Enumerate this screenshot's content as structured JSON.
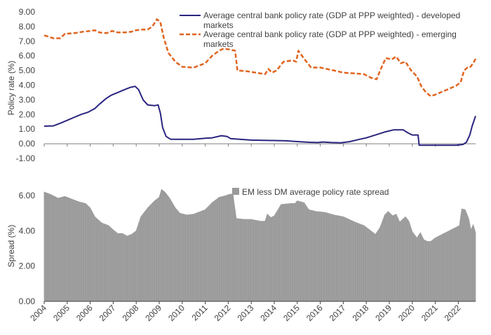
{
  "colors": {
    "developed": "#2a2580",
    "emerging": "#e0641e",
    "spread": "#9a9a9a",
    "axis": "#404040",
    "zero": "#7f7f7f"
  },
  "chart_data": [
    {
      "type": "line",
      "ylabel": "Policy rate (%)",
      "ylim": [
        -1.0,
        9.0
      ],
      "y_ticks": [
        "9.00",
        "8.00",
        "7.00",
        "6.00",
        "5.00",
        "4.00",
        "3.00",
        "2.00",
        "1.00",
        "0.00",
        "-1.00"
      ],
      "x_range": [
        2004.0,
        2022.75
      ],
      "grid": false,
      "legend_position": "top-right",
      "series": [
        {
          "name": "Average central bank policy rate (GDP at PPP weighted) - developed markets",
          "style": "solid",
          "points": [
            [
              2004.0,
              1.2
            ],
            [
              2004.4,
              1.22
            ],
            [
              2004.7,
              1.4
            ],
            [
              2005.0,
              1.6
            ],
            [
              2005.3,
              1.8
            ],
            [
              2005.6,
              2.0
            ],
            [
              2005.9,
              2.15
            ],
            [
              2006.2,
              2.4
            ],
            [
              2006.4,
              2.7
            ],
            [
              2006.7,
              3.1
            ],
            [
              2006.9,
              3.3
            ],
            [
              2007.2,
              3.5
            ],
            [
              2007.5,
              3.7
            ],
            [
              2007.75,
              3.85
            ],
            [
              2007.95,
              3.92
            ],
            [
              2008.1,
              3.7
            ],
            [
              2008.3,
              3.0
            ],
            [
              2008.5,
              2.65
            ],
            [
              2008.8,
              2.6
            ],
            [
              2008.95,
              2.65
            ],
            [
              2009.05,
              2.1
            ],
            [
              2009.15,
              1.1
            ],
            [
              2009.3,
              0.5
            ],
            [
              2009.5,
              0.3
            ],
            [
              2010.0,
              0.3
            ],
            [
              2010.5,
              0.3
            ],
            [
              2011.0,
              0.38
            ],
            [
              2011.3,
              0.4
            ],
            [
              2011.7,
              0.55
            ],
            [
              2011.95,
              0.5
            ],
            [
              2012.1,
              0.35
            ],
            [
              2012.5,
              0.3
            ],
            [
              2013.0,
              0.25
            ],
            [
              2014.0,
              0.22
            ],
            [
              2014.5,
              0.2
            ],
            [
              2015.0,
              0.15
            ],
            [
              2015.5,
              0.1
            ],
            [
              2015.9,
              0.08
            ],
            [
              2016.1,
              0.12
            ],
            [
              2016.5,
              0.08
            ],
            [
              2016.9,
              0.06
            ],
            [
              2017.3,
              0.15
            ],
            [
              2017.7,
              0.3
            ],
            [
              2018.0,
              0.4
            ],
            [
              2018.4,
              0.6
            ],
            [
              2018.8,
              0.8
            ],
            [
              2019.2,
              0.95
            ],
            [
              2019.6,
              0.95
            ],
            [
              2019.8,
              0.75
            ],
            [
              2020.0,
              0.6
            ],
            [
              2020.25,
              0.6
            ],
            [
              2020.3,
              -0.1
            ],
            [
              2020.5,
              -0.1
            ],
            [
              2021.0,
              -0.1
            ],
            [
              2021.5,
              -0.1
            ],
            [
              2021.9,
              -0.1
            ],
            [
              2022.2,
              -0.05
            ],
            [
              2022.35,
              0.1
            ],
            [
              2022.5,
              0.6
            ],
            [
              2022.6,
              1.2
            ],
            [
              2022.75,
              1.9
            ]
          ]
        },
        {
          "name": "Average central bank policy rate (GDP at PPP weighted) - emerging markets",
          "style": "dashed",
          "points": [
            [
              2004.0,
              7.4
            ],
            [
              2004.2,
              7.3
            ],
            [
              2004.4,
              7.2
            ],
            [
              2004.7,
              7.2
            ],
            [
              2004.9,
              7.5
            ],
            [
              2005.3,
              7.55
            ],
            [
              2005.7,
              7.65
            ],
            [
              2006.0,
              7.7
            ],
            [
              2006.2,
              7.75
            ],
            [
              2006.4,
              7.6
            ],
            [
              2006.7,
              7.55
            ],
            [
              2006.95,
              7.7
            ],
            [
              2007.2,
              7.6
            ],
            [
              2007.5,
              7.6
            ],
            [
              2007.8,
              7.65
            ],
            [
              2008.0,
              7.75
            ],
            [
              2008.3,
              7.8
            ],
            [
              2008.5,
              7.8
            ],
            [
              2008.7,
              8.0
            ],
            [
              2008.9,
              8.5
            ],
            [
              2009.05,
              8.3
            ],
            [
              2009.2,
              7.2
            ],
            [
              2009.4,
              6.2
            ],
            [
              2009.7,
              5.6
            ],
            [
              2010.0,
              5.25
            ],
            [
              2010.5,
              5.2
            ],
            [
              2011.0,
              5.5
            ],
            [
              2011.3,
              6.0
            ],
            [
              2011.6,
              6.35
            ],
            [
              2011.8,
              6.5
            ],
            [
              2012.0,
              6.45
            ],
            [
              2012.3,
              6.35
            ],
            [
              2012.4,
              5.0
            ],
            [
              2012.8,
              4.95
            ],
            [
              2013.2,
              4.85
            ],
            [
              2013.6,
              4.75
            ],
            [
              2013.75,
              5.1
            ],
            [
              2013.9,
              4.85
            ],
            [
              2014.1,
              5.0
            ],
            [
              2014.4,
              5.6
            ],
            [
              2014.8,
              5.7
            ],
            [
              2014.95,
              5.6
            ],
            [
              2015.05,
              6.35
            ],
            [
              2015.3,
              5.8
            ],
            [
              2015.6,
              5.2
            ],
            [
              2016.0,
              5.2
            ],
            [
              2016.3,
              5.1
            ],
            [
              2016.6,
              5.0
            ],
            [
              2017.0,
              4.85
            ],
            [
              2017.5,
              4.8
            ],
            [
              2017.9,
              4.75
            ],
            [
              2018.2,
              4.5
            ],
            [
              2018.45,
              4.4
            ],
            [
              2018.6,
              5.0
            ],
            [
              2018.85,
              5.85
            ],
            [
              2019.1,
              5.75
            ],
            [
              2019.3,
              5.95
            ],
            [
              2019.5,
              5.5
            ],
            [
              2019.7,
              5.6
            ],
            [
              2019.95,
              5.0
            ],
            [
              2020.2,
              4.6
            ],
            [
              2020.4,
              3.9
            ],
            [
              2020.6,
              3.5
            ],
            [
              2020.8,
              3.25
            ],
            [
              2021.0,
              3.35
            ],
            [
              2021.3,
              3.55
            ],
            [
              2021.6,
              3.75
            ],
            [
              2021.9,
              3.95
            ],
            [
              2022.1,
              4.2
            ],
            [
              2022.25,
              5.0
            ],
            [
              2022.4,
              5.2
            ],
            [
              2022.5,
              5.2
            ],
            [
              2022.65,
              5.5
            ],
            [
              2022.75,
              5.8
            ]
          ]
        }
      ]
    },
    {
      "type": "area",
      "ylabel": "Spread (%)",
      "ylim": [
        0.0,
        6.6
      ],
      "y_ticks": [
        "6.00",
        "4.00",
        "2.00",
        "0.00"
      ],
      "x_range": [
        2004.0,
        2022.75
      ],
      "x_ticks": [
        "2004",
        "2005",
        "2006",
        "2007",
        "2008",
        "2009",
        "2010",
        "2011",
        "2012",
        "2013",
        "2014",
        "2015",
        "2016",
        "2017",
        "2018",
        "2019",
        "2020",
        "2021",
        "2022"
      ],
      "grid": false,
      "legend_position": "top-right",
      "series": [
        {
          "name": "EM less DM average policy rate spread",
          "points": [
            [
              2004.0,
              6.2
            ],
            [
              2004.3,
              6.05
            ],
            [
              2004.6,
              5.85
            ],
            [
              2004.9,
              5.95
            ],
            [
              2005.2,
              5.8
            ],
            [
              2005.5,
              5.65
            ],
            [
              2005.8,
              5.55
            ],
            [
              2006.0,
              5.3
            ],
            [
              2006.2,
              4.8
            ],
            [
              2006.5,
              4.45
            ],
            [
              2006.8,
              4.3
            ],
            [
              2007.0,
              4.05
            ],
            [
              2007.2,
              3.85
            ],
            [
              2007.4,
              3.85
            ],
            [
              2007.6,
              3.7
            ],
            [
              2007.8,
              3.8
            ],
            [
              2008.0,
              4.0
            ],
            [
              2008.2,
              4.8
            ],
            [
              2008.5,
              5.3
            ],
            [
              2008.8,
              5.7
            ],
            [
              2009.0,
              5.9
            ],
            [
              2009.1,
              6.35
            ],
            [
              2009.25,
              6.2
            ],
            [
              2009.45,
              5.85
            ],
            [
              2009.7,
              5.3
            ],
            [
              2009.9,
              5.0
            ],
            [
              2010.2,
              4.9
            ],
            [
              2010.5,
              4.95
            ],
            [
              2010.8,
              5.1
            ],
            [
              2011.0,
              5.2
            ],
            [
              2011.3,
              5.6
            ],
            [
              2011.6,
              5.9
            ],
            [
              2011.9,
              6.0
            ],
            [
              2012.0,
              6.05
            ],
            [
              2012.2,
              6.1
            ],
            [
              2012.35,
              4.7
            ],
            [
              2012.7,
              4.65
            ],
            [
              2013.0,
              4.65
            ],
            [
              2013.4,
              4.55
            ],
            [
              2013.6,
              4.55
            ],
            [
              2013.7,
              4.95
            ],
            [
              2013.85,
              4.75
            ],
            [
              2014.0,
              4.85
            ],
            [
              2014.3,
              5.5
            ],
            [
              2014.7,
              5.55
            ],
            [
              2014.9,
              5.55
            ],
            [
              2015.0,
              5.7
            ],
            [
              2015.3,
              5.6
            ],
            [
              2015.5,
              5.2
            ],
            [
              2015.8,
              5.1
            ],
            [
              2016.2,
              5.05
            ],
            [
              2016.6,
              4.9
            ],
            [
              2017.0,
              4.8
            ],
            [
              2017.5,
              4.5
            ],
            [
              2017.9,
              4.3
            ],
            [
              2018.2,
              4.0
            ],
            [
              2018.4,
              3.8
            ],
            [
              2018.6,
              4.2
            ],
            [
              2018.8,
              4.9
            ],
            [
              2018.95,
              5.1
            ],
            [
              2019.15,
              4.85
            ],
            [
              2019.3,
              4.95
            ],
            [
              2019.45,
              4.5
            ],
            [
              2019.7,
              4.8
            ],
            [
              2019.85,
              4.55
            ],
            [
              2020.0,
              3.95
            ],
            [
              2020.2,
              3.6
            ],
            [
              2020.35,
              3.9
            ],
            [
              2020.5,
              3.5
            ],
            [
              2020.65,
              3.4
            ],
            [
              2020.8,
              3.4
            ],
            [
              2021.0,
              3.6
            ],
            [
              2021.3,
              3.8
            ],
            [
              2021.6,
              4.0
            ],
            [
              2021.9,
              4.2
            ],
            [
              2022.05,
              4.3
            ],
            [
              2022.15,
              5.25
            ],
            [
              2022.3,
              5.2
            ],
            [
              2022.45,
              4.7
            ],
            [
              2022.55,
              4.05
            ],
            [
              2022.65,
              4.35
            ],
            [
              2022.75,
              3.9
            ]
          ]
        }
      ]
    }
  ]
}
